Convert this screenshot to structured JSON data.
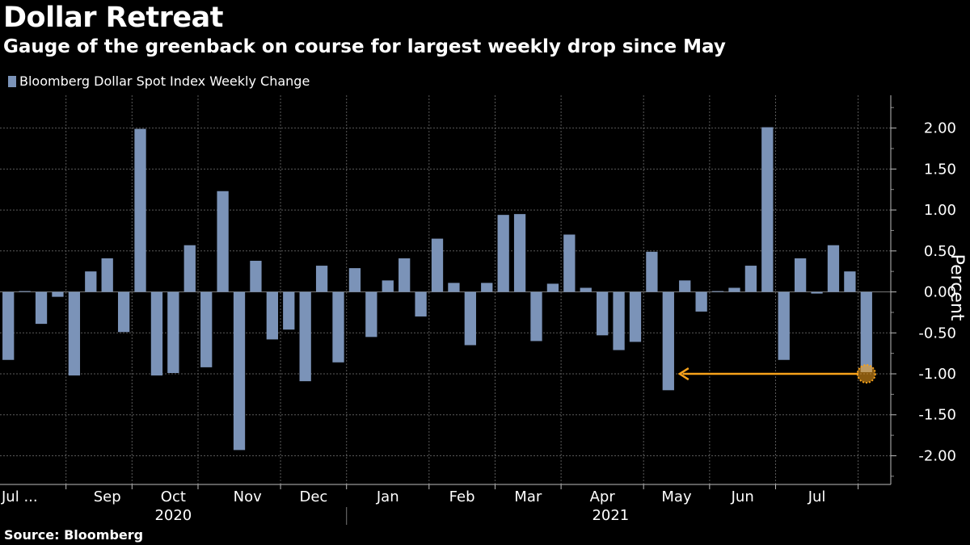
{
  "title": "Dollar Retreat",
  "subtitle": "Gauge of the greenback on course for largest weekly drop since May",
  "source": "Source: Bloomberg",
  "colors": {
    "bar": "#7b93b8",
    "highlight": "#f7a21b",
    "grid": "#5a5a5a",
    "background": "#000000"
  },
  "chart_data": {
    "type": "bar",
    "ylabel": "Percent",
    "ylim": [
      -2.35,
      2.4
    ],
    "yticks": [
      2.0,
      1.5,
      1.0,
      0.5,
      0.0,
      -0.5,
      -1.0,
      -1.5,
      -2.0
    ],
    "ytick_labels": [
      "2.00",
      "1.50",
      "1.00",
      "0.50",
      "0.00",
      "-0.50",
      "-1.00",
      "-1.50",
      "-2.00"
    ],
    "grid": true,
    "legend_position": "top-left",
    "series": [
      {
        "name": "Bloomberg Dollar Spot Index Weekly Change",
        "values": [
          -0.83,
          0.01,
          -0.39,
          -0.06,
          -1.02,
          0.25,
          0.41,
          -0.49,
          1.99,
          -1.02,
          -0.99,
          0.57,
          -0.92,
          1.23,
          -1.93,
          0.38,
          -0.58,
          -0.46,
          -1.09,
          0.32,
          -0.86,
          0.29,
          -0.55,
          0.14,
          0.41,
          -0.3,
          0.65,
          0.11,
          -0.65,
          0.11,
          0.94,
          0.95,
          -0.6,
          0.1,
          0.7,
          0.05,
          -0.53,
          -0.71,
          -0.61,
          0.49,
          -1.2,
          0.14,
          -0.24,
          0.01,
          0.05,
          0.32,
          2.01,
          -0.83,
          0.41,
          -0.02,
          0.57,
          0.25,
          -0.98
        ]
      }
    ],
    "month_labels": [
      "Jul ...",
      "Sep",
      "Oct",
      "Nov",
      "Dec",
      "Jan",
      "Feb",
      "Mar",
      "Apr",
      "May",
      "Jun",
      "Jul"
    ],
    "month_label_positions": [
      0.5,
      6.5,
      10.5,
      15,
      19,
      23.5,
      28,
      32,
      36.5,
      41,
      45,
      49.5
    ],
    "month_boundaries": [
      4,
      8,
      12,
      17,
      21,
      26,
      30,
      34,
      39,
      43,
      47,
      52
    ],
    "year_labels": [
      "2020",
      "2021"
    ],
    "year_label_positions": [
      10.5,
      37
    ],
    "year_divider_after": 21,
    "annotation": {
      "from_index": 52,
      "to_index": 40,
      "value": -1.0
    }
  }
}
